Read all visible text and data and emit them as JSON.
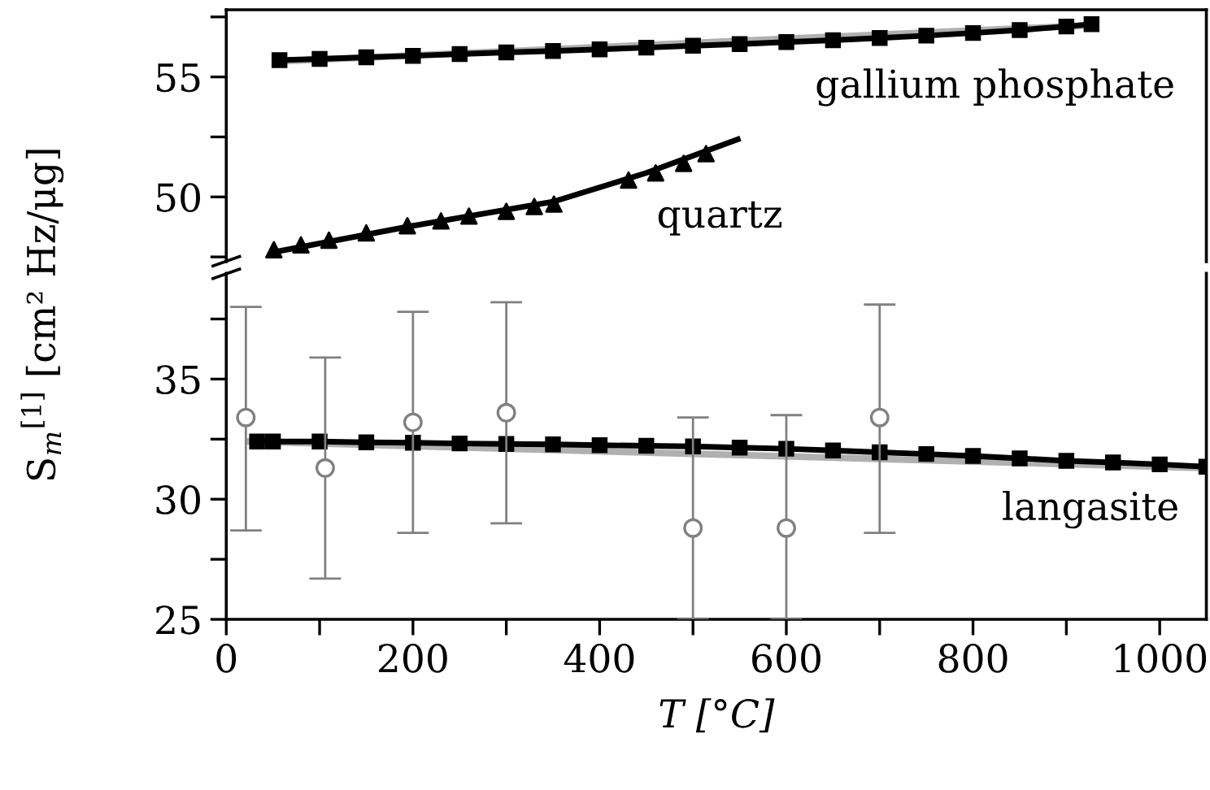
{
  "chart_data": [
    {
      "type": "line",
      "xlim": [
        0,
        1050
      ],
      "ylim": [
        47.3,
        57.8
      ],
      "yticks": [
        {
          "value": 47.5,
          "label": null
        },
        50,
        {
          "value": 52.5,
          "label": null
        },
        55,
        {
          "value": 57.5,
          "label": null
        }
      ],
      "tick_labels": "y",
      "grid": false,
      "legend": false,
      "series": [
        {
          "color": "#b0b0b0",
          "x": [
            57,
            927
          ],
          "values": [
            55.65,
            57.15
          ]
        },
        {
          "name": "gallium phosphate",
          "marker": "square",
          "line_style": "solid",
          "color": "#000000",
          "x": [
            57,
            100,
            150,
            200,
            250,
            300,
            350,
            400,
            450,
            500,
            550,
            600,
            650,
            700,
            750,
            800,
            850,
            900,
            927
          ],
          "values": [
            55.7,
            55.75,
            55.82,
            55.88,
            55.95,
            56.02,
            56.08,
            56.15,
            56.22,
            56.3,
            56.37,
            56.45,
            56.53,
            56.62,
            56.72,
            56.83,
            56.95,
            57.1,
            57.2
          ]
        },
        {
          "color": "#000000",
          "x": [
            51,
            200,
            350,
            450,
            548
          ],
          "values": [
            47.7,
            48.8,
            49.8,
            51.0,
            52.4
          ]
        },
        {
          "type": "scatter",
          "name": "quartz",
          "marker": "triangle",
          "color": "#000000",
          "x": [
            51,
            80,
            110,
            150,
            194,
            230,
            260,
            300,
            330,
            351,
            431,
            460,
            490,
            514
          ],
          "values": [
            47.8,
            48.0,
            48.2,
            48.5,
            48.8,
            49.0,
            49.2,
            49.4,
            49.6,
            49.7,
            50.7,
            51.0,
            51.4,
            51.8
          ]
        }
      ]
    },
    {
      "type": "line",
      "xlim": [
        0,
        1050
      ],
      "ylim": [
        25,
        39.4
      ],
      "xticks": [
        0,
        {
          "value": 100,
          "label": null
        },
        200,
        {
          "value": 300,
          "label": null
        },
        400,
        {
          "value": 500,
          "label": null
        },
        600,
        {
          "value": 700,
          "label": null
        },
        800,
        {
          "value": 900,
          "label": null
        },
        1000
      ],
      "yticks": [
        25,
        {
          "value": 27.5,
          "label": null
        },
        30,
        {
          "value": 32.5,
          "label": null
        },
        35,
        {
          "value": 37.5,
          "label": null
        }
      ],
      "xlabel": "T [°C]",
      "ylabel": "S$_{m}$$^{[1]}$ [cm² Hz/μg]",
      "grid": false,
      "legend": false,
      "series": [
        {
          "color": "#b0b0b0",
          "x": [
            25,
            1050
          ],
          "values": [
            32.4,
            31.3
          ]
        },
        {
          "name": "langasite",
          "marker": "square",
          "line_style": "solid",
          "color": "#000000",
          "x": [
            33,
            50,
            100,
            150,
            200,
            250,
            300,
            350,
            400,
            450,
            500,
            550,
            600,
            650,
            700,
            750,
            800,
            850,
            900,
            950,
            1000,
            1050
          ],
          "values": [
            32.4,
            32.4,
            32.4,
            32.37,
            32.35,
            32.32,
            32.3,
            32.28,
            32.25,
            32.22,
            32.2,
            32.15,
            32.1,
            32.03,
            31.95,
            31.88,
            31.8,
            31.7,
            31.6,
            31.53,
            31.45,
            31.35
          ]
        },
        {
          "type": "scatter",
          "marker": "circle",
          "color": "#808080",
          "x": [
            21,
            106,
            200,
            300,
            500,
            600,
            700
          ],
          "values": [
            33.4,
            31.3,
            33.2,
            33.6,
            28.8,
            28.8,
            33.4
          ],
          "errors": [
            [
              28.7,
              38.0
            ],
            [
              26.7,
              35.9
            ],
            [
              28.6,
              37.8
            ],
            [
              29.0,
              38.2
            ],
            [
              25,
              33.4
            ],
            [
              25,
              33.5
            ],
            [
              28.6,
              38.1
            ]
          ]
        }
      ]
    }
  ]
}
